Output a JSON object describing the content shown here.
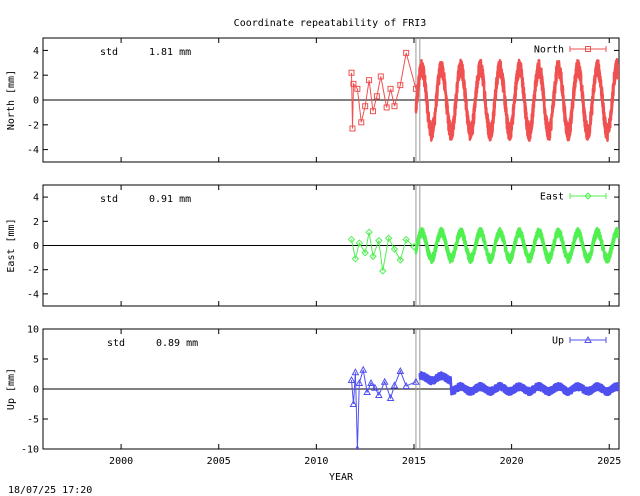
{
  "title": "Coordinate repeatability of FRI3",
  "footer": "18/07/25 17:20",
  "chart_data": [
    {
      "type": "line",
      "series": [
        {
          "name": "North",
          "color": "#f05050",
          "marker": "square"
        }
      ],
      "ylabel": "North [mm]",
      "stat_label": "std",
      "stat_value": "1.81 mm",
      "ylim": [
        -5,
        5
      ],
      "yticks": [
        4,
        2,
        0,
        -2,
        -4
      ],
      "xlim": [
        1996,
        2025.5
      ],
      "x": [
        2011.8,
        2011.85,
        2011.9,
        2012.1,
        2012.3,
        2012.5,
        2012.7,
        2012.9,
        2013.1,
        2013.3,
        2013.6,
        2013.8,
        2014.0,
        2014.3,
        2014.6,
        2015.1
      ],
      "values": [
        2.2,
        -2.3,
        1.3,
        0.9,
        -1.8,
        -0.5,
        1.6,
        -0.9,
        0.3,
        1.9,
        -0.6,
        0.9,
        -0.5,
        1.2,
        3.8,
        0.9
      ],
      "dense_start": 2015.1,
      "dense_end": 2025.5,
      "annual_amplitude": 2.6,
      "noise": 0.7
    },
    {
      "type": "line",
      "series": [
        {
          "name": "East",
          "color": "#50f050",
          "marker": "diamond"
        }
      ],
      "ylabel": "East [mm]",
      "stat_label": "std",
      "stat_value": "0.91 mm",
      "ylim": [
        -5,
        5
      ],
      "yticks": [
        4,
        2,
        0,
        -2,
        -4
      ],
      "xlim": [
        1996,
        2025.5
      ],
      "x": [
        2011.8,
        2012.0,
        2012.2,
        2012.5,
        2012.7,
        2012.9,
        2013.2,
        2013.4,
        2013.7,
        2014.0,
        2014.3,
        2014.6,
        2015.0
      ],
      "values": [
        0.5,
        -1.1,
        0.2,
        -0.6,
        1.1,
        -0.9,
        0.4,
        -2.1,
        0.6,
        -0.3,
        -1.2,
        0.5,
        -0.1
      ],
      "dense_start": 2015.1,
      "dense_end": 2025.5,
      "annual_amplitude": 1.1,
      "noise": 0.35
    },
    {
      "type": "line",
      "series": [
        {
          "name": "Up",
          "color": "#5050f0",
          "marker": "triangle"
        }
      ],
      "ylabel": "Up [mm]",
      "stat_label": "std",
      "stat_value": "0.89 mm",
      "ylim": [
        -10,
        10
      ],
      "yticks": [
        10,
        5,
        0,
        -5,
        -10
      ],
      "xlim": [
        1996,
        2025.5
      ],
      "xticks": [
        2000,
        2005,
        2010,
        2015,
        2020,
        2025
      ],
      "xlabel": "YEAR",
      "x": [
        2011.8,
        2011.9,
        2012.0,
        2012.1,
        2012.2,
        2012.4,
        2012.6,
        2012.8,
        2013.0,
        2013.2,
        2013.5,
        2013.8,
        2014.0,
        2014.3,
        2014.6,
        2015.1
      ],
      "values": [
        1.5,
        -2.5,
        2.8,
        -10,
        1.0,
        3.2,
        -0.5,
        1.0,
        0.2,
        -1.0,
        1.2,
        -1.5,
        0.6,
        3.0,
        0.5,
        1.2
      ],
      "dense_start": 2015.3,
      "dense_end": 2025.5,
      "annual_amplitude": 0.4,
      "noise": 0.6
    }
  ],
  "events": [
    2015.1,
    2015.3
  ]
}
